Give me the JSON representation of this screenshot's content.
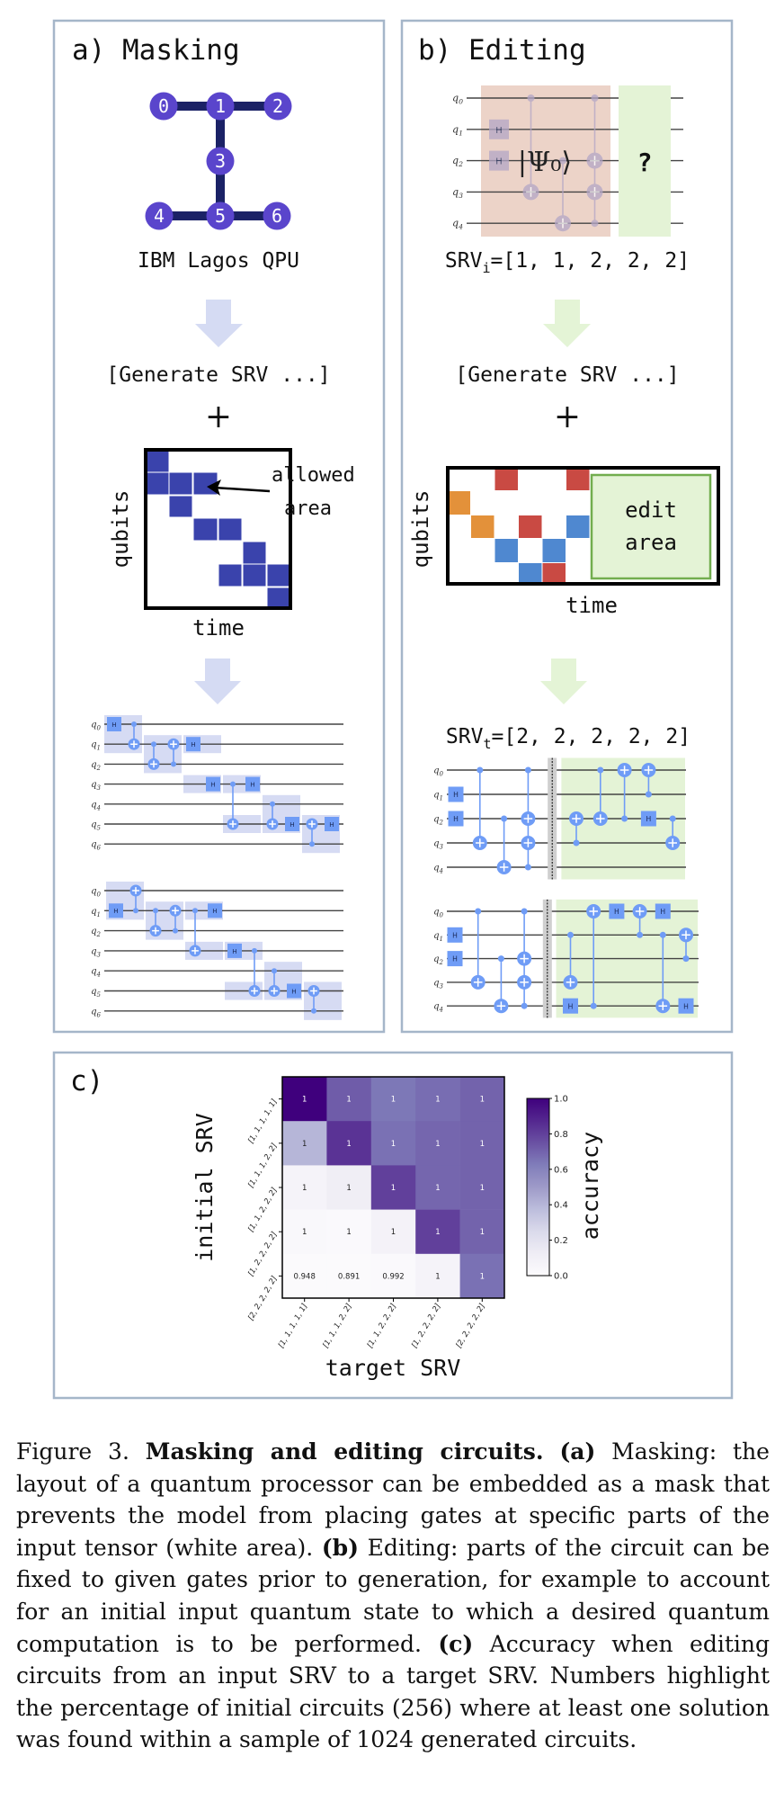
{
  "panel_a": {
    "title": "a) Masking",
    "qpu": {
      "nodes": [
        "0",
        "1",
        "2",
        "3",
        "4",
        "5",
        "6"
      ],
      "edges": [
        [
          0,
          1
        ],
        [
          1,
          2
        ],
        [
          1,
          3
        ],
        [
          3,
          5
        ],
        [
          4,
          5
        ],
        [
          5,
          6
        ]
      ],
      "node_color": "#5a45cc",
      "edge_color": "#1b2266",
      "label": "IBM Lagos QPU"
    },
    "arrow_color": "#d5dbf3",
    "prompt": "[Generate SRV ...]",
    "plus": "+",
    "mask": {
      "ylabel": "qubits",
      "xlabel": "time",
      "rows": 7,
      "cols": 6,
      "allowed_cells": [
        [
          0,
          0
        ],
        [
          1,
          0
        ],
        [
          1,
          1
        ],
        [
          1,
          2
        ],
        [
          2,
          1
        ],
        [
          3,
          2
        ],
        [
          3,
          3
        ],
        [
          4,
          4
        ],
        [
          5,
          3
        ],
        [
          5,
          4
        ],
        [
          5,
          5
        ],
        [
          6,
          5
        ]
      ],
      "cell_color": "#3a43ac",
      "annotation_line1": "allowed",
      "annotation_line2": "area"
    },
    "circuits": [
      {
        "wires": [
          "q0",
          "q1",
          "q2",
          "q3",
          "q4",
          "q5",
          "q6"
        ],
        "gate_color": "#6f9cf6",
        "mask_color": "#d6dbf3",
        "masked_regions": [
          {
            "steps": [
              0,
              1
            ],
            "qubits": [
              0,
              1
            ]
          },
          {
            "steps": [
              2,
              3
            ],
            "qubits": [
              1,
              2
            ]
          },
          {
            "steps": [
              4,
              5
            ],
            "qubits": [
              1,
              1
            ]
          },
          {
            "steps": [
              4,
              5
            ],
            "qubits": [
              3,
              3
            ]
          },
          {
            "steps": [
              6,
              7
            ],
            "qubits": [
              3,
              3
            ]
          },
          {
            "steps": [
              6,
              7
            ],
            "qubits": [
              5,
              5
            ]
          },
          {
            "steps": [
              8,
              9
            ],
            "qubits": [
              4,
              5
            ]
          },
          {
            "steps": [
              10,
              11
            ],
            "qubits": [
              5,
              6
            ]
          }
        ],
        "gates": [
          {
            "s": 0,
            "gate": "H",
            "q": 0
          },
          {
            "s": 1,
            "c": [
              0
            ],
            "t": [
              1
            ]
          },
          {
            "s": 2,
            "c": [
              1
            ],
            "t": [
              2
            ]
          },
          {
            "s": 3,
            "c": [
              2
            ],
            "t": [
              1
            ]
          },
          {
            "s": 4,
            "gate": "H",
            "q": 1
          },
          {
            "s": 5,
            "gate": "H",
            "q": 3
          },
          {
            "s": 6,
            "c": [
              3
            ],
            "t": [
              5
            ]
          },
          {
            "s": 7,
            "gate": "H",
            "q": 3
          },
          {
            "s": 8,
            "c": [
              4
            ],
            "t": [
              5
            ]
          },
          {
            "s": 9,
            "gate": "H",
            "q": 5
          },
          {
            "s": 10,
            "c": [
              6
            ],
            "t": [
              5
            ]
          },
          {
            "s": 11,
            "gate": "H",
            "q": 5
          }
        ]
      },
      {
        "wires": [
          "q0",
          "q1",
          "q2",
          "q3",
          "q4",
          "q5",
          "q6"
        ],
        "gate_color": "#6f9cf6",
        "mask_color": "#d6dbf3",
        "masked_regions": [
          {
            "steps": [
              0,
              1
            ],
            "qubits": [
              0,
              1
            ]
          },
          {
            "steps": [
              2,
              3
            ],
            "qubits": [
              1,
              2
            ]
          },
          {
            "steps": [
              4,
              5
            ],
            "qubits": [
              1,
              1
            ]
          },
          {
            "steps": [
              4,
              5
            ],
            "qubits": [
              3,
              3
            ]
          },
          {
            "steps": [
              6,
              7
            ],
            "qubits": [
              3,
              3
            ]
          },
          {
            "steps": [
              6,
              7
            ],
            "qubits": [
              5,
              5
            ]
          },
          {
            "steps": [
              8,
              9
            ],
            "qubits": [
              4,
              5
            ]
          },
          {
            "steps": [
              10,
              11
            ],
            "qubits": [
              5,
              6
            ]
          }
        ],
        "gates": [
          {
            "s": 0,
            "gate": "H",
            "q": 1
          },
          {
            "s": 1,
            "c": [
              1
            ],
            "t": [
              0
            ]
          },
          {
            "s": 2,
            "c": [
              1
            ],
            "t": [
              2
            ]
          },
          {
            "s": 3,
            "c": [
              2
            ],
            "t": [
              1
            ]
          },
          {
            "s": 4,
            "c": [
              1
            ],
            "t": [
              3
            ]
          },
          {
            "s": 5,
            "gate": "H",
            "q": 1
          },
          {
            "s": 6,
            "gate": "H",
            "q": 3
          },
          {
            "s": 7,
            "c": [
              3
            ],
            "t": [
              5
            ]
          },
          {
            "s": 8,
            "c": [
              4
            ],
            "t": [
              5
            ]
          },
          {
            "s": 9,
            "gate": "H",
            "q": 5
          },
          {
            "s": 10,
            "c": [
              6
            ],
            "t": [
              5
            ]
          }
        ]
      }
    ]
  },
  "panel_b": {
    "title": "b) Editing",
    "initial_circuit": {
      "wires": [
        "q0",
        "q1",
        "q2",
        "q3",
        "q4"
      ],
      "gate_color": "#b3a6c6",
      "fixed_region_color": "#ecd3c8",
      "edit_region_color": "#e4f3d6",
      "state_label": "|Ψ₀⟩",
      "unknown_label": "?",
      "gates": [
        {
          "s": 0,
          "gate": "H",
          "q": 1
        },
        {
          "s": 0,
          "gate": "H",
          "q": 2
        },
        {
          "s": 1,
          "c": [
            0
          ],
          "t": [
            3
          ]
        },
        {
          "s": 2,
          "c": [
            2
          ],
          "t": [
            4
          ]
        },
        {
          "s": 3,
          "c": [
            0,
            4
          ],
          "t": [
            2,
            3
          ]
        }
      ]
    },
    "srv_initial": {
      "prefix": "SRV",
      "sub": "i",
      "value": "=[1, 1, 2, 2, 2]"
    },
    "arrow_color": "#e4f4d6",
    "prompt": "[Generate SRV ...]",
    "plus": "+",
    "edit_mask": {
      "ylabel": "qubits",
      "xlabel": "time",
      "fixed_cells": [
        {
          "r": 0,
          "c": 2,
          "color": "#c94a43"
        },
        {
          "r": 0,
          "c": 5,
          "color": "#c94a43"
        },
        {
          "r": 1,
          "c": 0,
          "color": "#e3913a"
        },
        {
          "r": 2,
          "c": 1,
          "color": "#e3913a"
        },
        {
          "r": 2,
          "c": 3,
          "color": "#c94a43"
        },
        {
          "r": 2,
          "c": 5,
          "color": "#4f88d0"
        },
        {
          "r": 3,
          "c": 2,
          "color": "#4f88d0"
        },
        {
          "r": 3,
          "c": 4,
          "color": "#4f88d0"
        },
        {
          "r": 4,
          "c": 3,
          "color": "#4f88d0"
        },
        {
          "r": 4,
          "c": 4,
          "color": "#c94a43"
        }
      ],
      "edit_area_line1": "edit",
      "edit_area_line2": "area",
      "edit_area_color": "#e4f3d6",
      "edit_area_border": "#72ad4f"
    },
    "srv_target": {
      "prefix": "SRV",
      "sub": "t",
      "value": "=[2, 2, 2, 2, 2]"
    },
    "circuits": [
      {
        "wires": [
          "q0",
          "q1",
          "q2",
          "q3",
          "q4"
        ],
        "gate_color": "#6f9cf6",
        "barrier_step": 4,
        "edit_from_step": 5,
        "edit_color": "#e4f3d6",
        "gates": [
          {
            "s": 0,
            "gate": "H",
            "q": 1
          },
          {
            "s": 0,
            "gate": "H",
            "q": 2
          },
          {
            "s": 1,
            "c": [
              0
            ],
            "t": [
              3
            ]
          },
          {
            "s": 2,
            "c": [
              2
            ],
            "t": [
              4
            ]
          },
          {
            "s": 3,
            "c": [
              0,
              4
            ],
            "t": [
              2,
              3
            ]
          },
          {
            "s": 5,
            "c": [
              3
            ],
            "t": [
              2
            ]
          },
          {
            "s": 6,
            "c": [
              0
            ],
            "t": [
              2
            ]
          },
          {
            "s": 7,
            "c": [
              2
            ],
            "t": [
              0
            ]
          },
          {
            "s": 8,
            "c": [
              1
            ],
            "t": [
              0
            ]
          },
          {
            "s": 8,
            "gate": "H",
            "q": 2
          },
          {
            "s": 9,
            "c": [
              2
            ],
            "t": [
              3
            ]
          }
        ]
      },
      {
        "wires": [
          "q0",
          "q1",
          "q2",
          "q3",
          "q4"
        ],
        "gate_color": "#6f9cf6",
        "barrier_step": 4,
        "edit_from_step": 5,
        "edit_color": "#e4f3d6",
        "gates": [
          {
            "s": 0,
            "gate": "H",
            "q": 1
          },
          {
            "s": 0,
            "gate": "H",
            "q": 2
          },
          {
            "s": 1,
            "c": [
              0
            ],
            "t": [
              3
            ]
          },
          {
            "s": 2,
            "c": [
              2
            ],
            "t": [
              4
            ]
          },
          {
            "s": 3,
            "c": [
              0,
              4
            ],
            "t": [
              2,
              3
            ]
          },
          {
            "s": 5,
            "gate": "H",
            "q": 4
          },
          {
            "s": 5,
            "c": [
              1
            ],
            "t": [
              3
            ]
          },
          {
            "s": 6,
            "c": [
              4
            ],
            "t": [
              0
            ]
          },
          {
            "s": 7,
            "gate": "H",
            "q": 0
          },
          {
            "s": 8,
            "c": [
              1
            ],
            "t": [
              0
            ]
          },
          {
            "s": 9,
            "gate": "H",
            "q": 0
          },
          {
            "s": 9,
            "c": [
              1
            ],
            "t": [
              4
            ]
          },
          {
            "s": 10,
            "c": [
              2
            ],
            "t": [
              1
            ]
          },
          {
            "s": 10,
            "gate": "H",
            "q": 4
          }
        ]
      }
    ]
  },
  "panel_c": {
    "title": "c)"
  },
  "chart_data": {
    "type": "heatmap",
    "xlabel": "target SRV",
    "ylabel": "initial SRV",
    "x_categories": [
      "[1, 1, 1, 1, 1]",
      "[1, 1, 1, 2, 2]",
      "[1, 1, 2, 2, 2]",
      "[1, 2, 2, 2, 2]",
      "[2, 2, 2, 2, 2]"
    ],
    "y_categories": [
      "[1, 1, 1, 1, 1]",
      "[1, 1, 1, 2, 2]",
      "[1, 1, 2, 2, 2]",
      "[1, 2, 2, 2, 2]",
      "[2, 2, 2, 2, 2]"
    ],
    "color_values": [
      [
        1.0,
        0.72,
        0.64,
        0.67,
        0.7
      ],
      [
        0.4,
        0.84,
        0.66,
        0.69,
        0.7
      ],
      [
        0.07,
        0.12,
        0.8,
        0.69,
        0.7
      ],
      [
        0.03,
        0.02,
        0.08,
        0.8,
        0.7
      ],
      [
        0.01,
        0.01,
        0.02,
        0.07,
        0.66
      ]
    ],
    "annotations": [
      [
        "1",
        "1",
        "1",
        "1",
        "1"
      ],
      [
        "1",
        "1",
        "1",
        "1",
        "1"
      ],
      [
        "1",
        "1",
        "1",
        "1",
        "1"
      ],
      [
        "1",
        "1",
        "1",
        "1",
        "1"
      ],
      [
        "0.948",
        "0.891",
        "0.992",
        "1",
        "1"
      ]
    ],
    "colormap": "Purples",
    "colorbar": {
      "label": "accuracy",
      "range": [
        0.0,
        1.0
      ],
      "ticks": [
        "0.0",
        "0.2",
        "0.4",
        "0.6",
        "0.8",
        "1.0"
      ]
    }
  },
  "caption": [
    {
      "text": "Figure 3. ",
      "bold": false
    },
    {
      "text": "Masking and editing circuits.",
      "bold": true
    },
    {
      "text": " ",
      "bold": false
    },
    {
      "text": "(a)",
      "bold": true
    },
    {
      "text": " Masking: the layout of a quantum processor can be embedded as a mask that prevents the model from placing gates at specific parts of the input tensor (white area). ",
      "bold": false
    },
    {
      "text": "(b)",
      "bold": true
    },
    {
      "text": " Editing: parts of the circuit can be fixed to given gates prior to generation, for example to account for an initial input quantum state to which a desired quantum computation is to be performed. ",
      "bold": false
    },
    {
      "text": "(c)",
      "bold": true
    },
    {
      "text": " Accuracy when editing circuits from an input SRV to a target SRV. Numbers highlight the percentage of initial circuits (256) where at least one solution was found within a sample of 1024 generated circuits.",
      "bold": false
    }
  ]
}
